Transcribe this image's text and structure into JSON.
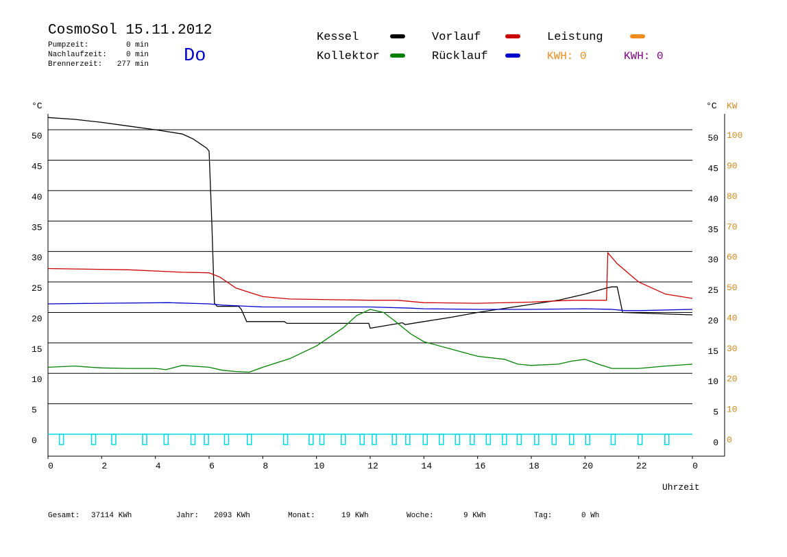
{
  "header": {
    "title": "CosmoSol 15.11.2012",
    "day": "Do",
    "info": [
      {
        "label": "Pumpzeit:",
        "value": "0 min"
      },
      {
        "label": "Nachlaufzeit:",
        "value": "0 min"
      },
      {
        "label": "Brennerzeit:",
        "value": "277 min"
      }
    ],
    "kwh": [
      {
        "text": "KWH: 0",
        "color": "#f08c1e"
      },
      {
        "text": "KWH: 0",
        "color": "#800080"
      }
    ]
  },
  "footer": [
    {
      "label": "Gesamt:",
      "value": "37114 KWh"
    },
    {
      "label": "Jahr:",
      "value": "2093 KWh"
    },
    {
      "label": "Monat:",
      "value": "19 KWh"
    },
    {
      "label": "Woche:",
      "value": "9 KWh"
    },
    {
      "label": "Tag:",
      "value": "0 Wh"
    }
  ],
  "chart_data": {
    "type": "line",
    "ylabel": "°C",
    "y2label_c": "°C",
    "y2label": "KW",
    "xlabel": "Uhrzeit",
    "xlim": [
      0,
      25.2
    ],
    "xticks": [
      0,
      2,
      4,
      6,
      8,
      10,
      12,
      14,
      16,
      18,
      20,
      22,
      {
        "value": 24,
        "label": "0"
      }
    ],
    "ylim": [
      -3.6,
      52.6
    ],
    "yticks": [
      0,
      5,
      10,
      15,
      20,
      25,
      30,
      35,
      40,
      45,
      50
    ],
    "y2lim": [
      -7.2,
      105.2
    ],
    "y2ticks": [
      0,
      10,
      20,
      30,
      40,
      50,
      60,
      70,
      80,
      90,
      100
    ],
    "y2color": "#d08a20",
    "grid": true,
    "series": [
      {
        "name": "Kessel",
        "color": "#000000",
        "x": [
          0,
          1,
          2,
          3,
          4,
          5,
          5.4,
          5.9,
          6.0,
          6.1,
          6.2,
          6.3,
          7.1,
          7.2,
          7.4,
          8.8,
          8.9,
          11.95,
          12.0,
          13.2,
          13.3,
          14,
          15,
          16,
          17.5,
          19,
          20,
          20.8,
          21.0,
          21.2,
          21.4,
          24
        ],
        "values": [
          52,
          51.7,
          51.2,
          50.6,
          50,
          49.3,
          48.5,
          47,
          46.5,
          35,
          21.5,
          21,
          21,
          20.5,
          18.5,
          18.5,
          18.2,
          18.2,
          17.4,
          18.3,
          18.0,
          18.5,
          19.2,
          20,
          21,
          22,
          23,
          24,
          24.2,
          24.2,
          20,
          19.6
        ]
      },
      {
        "name": "Kollektor",
        "color": "#008000",
        "x": [
          0,
          1,
          1.6,
          2,
          3,
          4,
          4.4,
          5,
          6,
          6.5,
          7,
          7.5,
          8,
          9,
          10,
          11,
          11.5,
          12,
          12.5,
          13,
          13.5,
          14,
          15,
          16,
          17,
          17.5,
          18,
          19,
          19.5,
          20,
          20.5,
          21,
          22,
          23,
          24
        ],
        "values": [
          11,
          11.2,
          11,
          10.9,
          10.8,
          10.8,
          10.6,
          11.3,
          11,
          10.5,
          10.3,
          10.2,
          11,
          12.4,
          14.5,
          17.5,
          19.5,
          20.5,
          20,
          18.3,
          16.5,
          15.2,
          14,
          12.8,
          12.3,
          11.5,
          11.3,
          11.5,
          12,
          12.3,
          11.5,
          10.8,
          10.8,
          11.2,
          11.5
        ]
      },
      {
        "name": "Vorlauf",
        "color": "#cc0000",
        "x": [
          0,
          3,
          5,
          6,
          6.4,
          7,
          7.5,
          8,
          9,
          12,
          13,
          14,
          16,
          18,
          19.5,
          20.8,
          20.85,
          21.2,
          22,
          23,
          24
        ],
        "values": [
          27.2,
          27,
          26.6,
          26.5,
          25.8,
          24,
          23.3,
          22.6,
          22.2,
          22,
          22,
          21.6,
          21.5,
          21.7,
          22,
          22,
          29.8,
          28,
          25,
          23,
          22.3
        ]
      },
      {
        "name": "Rücklauf",
        "color": "#0000cc",
        "x": [
          0,
          2,
          4.5,
          6,
          6.5,
          7.5,
          8,
          12,
          13.5,
          14,
          16,
          18,
          20,
          21,
          21.5,
          22,
          24
        ],
        "values": [
          21.4,
          21.5,
          21.6,
          21.4,
          21.2,
          21,
          20.9,
          20.9,
          20.7,
          20.6,
          20.5,
          20.5,
          20.6,
          20.5,
          20.3,
          20.3,
          20.5
        ]
      },
      {
        "name": "Leistung",
        "color": "#f08c1e",
        "x": [],
        "values": []
      }
    ],
    "pump": {
      "color": "#00d8e0",
      "x": [
        0.5,
        1.7,
        2.45,
        3.6,
        4.4,
        5.4,
        5.9,
        6.65,
        7.5,
        8.85,
        9.8,
        10.2,
        11,
        11.7,
        12.15,
        12.9,
        13.4,
        14.05,
        14.65,
        15.25,
        15.8,
        16.4,
        17,
        17.55,
        18.2,
        18.85,
        19.5,
        20.1,
        21.05,
        22.05,
        23.05
      ]
    }
  }
}
